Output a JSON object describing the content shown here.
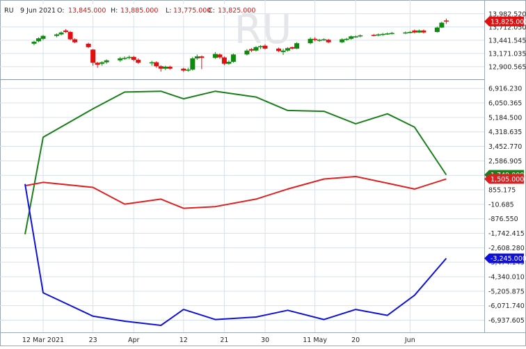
{
  "watermark": "RU",
  "header": {
    "symbol": "RU",
    "date": "9 Jun 2021",
    "open_label": "O:",
    "open_value": "13,845.000",
    "high_label": "H:",
    "high_value": "13,885.000",
    "low_label": "L:",
    "low_value": "13,775.000",
    "close_label": "C:",
    "close_value": "13,825.000"
  },
  "colors": {
    "up": "#0e8a0e",
    "down": "#e01010",
    "green_line": "#1a7f1a",
    "red_line": "#e02020",
    "blue_line": "#1010dd",
    "grid": "#d6e0ea",
    "axis_text": "#222222",
    "header_value": "#e01010"
  },
  "x_axis": {
    "ticks": [
      {
        "label": "12 Mar 2021",
        "date": "2021-03-12"
      },
      {
        "label": "23",
        "date": "2021-03-23"
      },
      {
        "label": "Apr",
        "date": "2021-04-01"
      },
      {
        "label": "12",
        "date": "2021-04-12"
      },
      {
        "label": "21",
        "date": "2021-04-21"
      },
      {
        "label": "30",
        "date": "2021-04-30"
      },
      {
        "label": "11 May",
        "date": "2021-05-11"
      },
      {
        "label": "20",
        "date": "2021-05-20"
      },
      {
        "label": "Jun",
        "date": "2021-06-01"
      }
    ]
  },
  "price_panel": {
    "y_ticks": [
      "13,982.520",
      "13,712.050",
      "13,441.545",
      "13,171.035",
      "12,900.565"
    ],
    "last_price_label": "13,825.000"
  },
  "indicator_panel": {
    "y_ticks": [
      "6,916.230",
      "6,050.365",
      "5,184.500",
      "4,318.635",
      "3,452.770",
      "2,586.905",
      "1,721.040",
      "855.175",
      "-10.685",
      "-876.550",
      "-1,742.415",
      "-2,608.280",
      "-3,474.145",
      "-4,340.010",
      "-5,205.875",
      "-6,071.740",
      "-6,937.605"
    ],
    "badges": [
      {
        "label": "1,749.000",
        "series": "green"
      },
      {
        "label": "1,505.000",
        "series": "red"
      },
      {
        "label": "-3,245.000",
        "series": "blue"
      }
    ]
  },
  "chart_data": [
    {
      "type": "candlestick",
      "title": "RU",
      "ylim": [
        12700,
        14150
      ],
      "candles": [
        {
          "date": "2021-03-10",
          "open": 13370,
          "high": 13430,
          "low": 13340,
          "close": 13410
        },
        {
          "date": "2021-03-11",
          "open": 13420,
          "high": 13500,
          "low": 13400,
          "close": 13480
        },
        {
          "date": "2021-03-12",
          "open": 13470,
          "high": 13550,
          "low": 13440,
          "close": 13530
        },
        {
          "date": "2021-03-15",
          "open": 13530,
          "high": 13580,
          "low": 13500,
          "close": 13560
        },
        {
          "date": "2021-03-16",
          "open": 13560,
          "high": 13620,
          "low": 13540,
          "close": 13600
        },
        {
          "date": "2021-03-17",
          "open": 13640,
          "high": 13670,
          "low": 13590,
          "close": 13610
        },
        {
          "date": "2021-03-18",
          "open": 13610,
          "high": 13630,
          "low": 13440,
          "close": 13460
        },
        {
          "date": "2021-03-19",
          "open": 13460,
          "high": 13480,
          "low": 13380,
          "close": 13400
        },
        {
          "date": "2021-03-22",
          "open": 13370,
          "high": 13390,
          "low": 13280,
          "close": 13300
        },
        {
          "date": "2021-03-23",
          "open": 13250,
          "high": 13260,
          "low": 12920,
          "close": 12980
        },
        {
          "date": "2021-03-24",
          "open": 12980,
          "high": 13000,
          "low": 12880,
          "close": 12940
        },
        {
          "date": "2021-03-25",
          "open": 12960,
          "high": 13010,
          "low": 12920,
          "close": 12990
        },
        {
          "date": "2021-03-26",
          "open": 12990,
          "high": 13050,
          "low": 12960,
          "close": 13030
        },
        {
          "date": "2021-03-29",
          "open": 13030,
          "high": 13100,
          "low": 13000,
          "close": 13070
        },
        {
          "date": "2021-03-30",
          "open": 13070,
          "high": 13110,
          "low": 13040,
          "close": 13080
        },
        {
          "date": "2021-03-31",
          "open": 13080,
          "high": 13130,
          "low": 13050,
          "close": 13100
        },
        {
          "date": "2021-04-01",
          "open": 13100,
          "high": 13120,
          "low": 13010,
          "close": 13040
        },
        {
          "date": "2021-04-02",
          "open": 13040,
          "high": 13070,
          "low": 12960,
          "close": 12980
        },
        {
          "date": "2021-04-05",
          "open": 12980,
          "high": 13020,
          "low": 12920,
          "close": 12990
        },
        {
          "date": "2021-04-06",
          "open": 12990,
          "high": 13010,
          "low": 12880,
          "close": 12910
        },
        {
          "date": "2021-04-07",
          "open": 12910,
          "high": 12930,
          "low": 12800,
          "close": 12860
        },
        {
          "date": "2021-04-08",
          "open": 12860,
          "high": 12920,
          "low": 12830,
          "close": 12900
        },
        {
          "date": "2021-04-09",
          "open": 12900,
          "high": 12920,
          "low": 12840,
          "close": 12860
        },
        {
          "date": "2021-04-12",
          "open": 12860,
          "high": 12880,
          "low": 12790,
          "close": 12820
        },
        {
          "date": "2021-04-13",
          "open": 12820,
          "high": 12880,
          "low": 12800,
          "close": 12840
        },
        {
          "date": "2021-04-14",
          "open": 12840,
          "high": 13100,
          "low": 12820,
          "close": 13070
        },
        {
          "date": "2021-04-15",
          "open": 13070,
          "high": 13150,
          "low": 13040,
          "close": 13110
        },
        {
          "date": "2021-04-16",
          "open": 13110,
          "high": 13130,
          "low": 12850,
          "close": 13080
        },
        {
          "date": "2021-04-19",
          "open": 13080,
          "high": 13200,
          "low": 13060,
          "close": 13160
        },
        {
          "date": "2021-04-20",
          "open": 13150,
          "high": 13170,
          "low": 13060,
          "close": 13090
        },
        {
          "date": "2021-04-21",
          "open": 13090,
          "high": 13110,
          "low": 12930,
          "close": 12960
        },
        {
          "date": "2021-04-22",
          "open": 12960,
          "high": 13030,
          "low": 12940,
          "close": 13000
        },
        {
          "date": "2021-04-23",
          "open": 13000,
          "high": 13170,
          "low": 12980,
          "close": 13150
        },
        {
          "date": "2021-04-26",
          "open": 13150,
          "high": 13260,
          "low": 13130,
          "close": 13230
        },
        {
          "date": "2021-04-27",
          "open": 13260,
          "high": 13280,
          "low": 13200,
          "close": 13230
        },
        {
          "date": "2021-04-28",
          "open": 13230,
          "high": 13320,
          "low": 13210,
          "close": 13300
        },
        {
          "date": "2021-04-29",
          "open": 13300,
          "high": 13340,
          "low": 13260,
          "close": 13320
        },
        {
          "date": "2021-04-30",
          "open": 13330,
          "high": 13360,
          "low": 13250,
          "close": 13270
        },
        {
          "date": "2021-05-03",
          "open": 13270,
          "high": 13290,
          "low": 13200,
          "close": 13220
        },
        {
          "date": "2021-05-04",
          "open": 13200,
          "high": 13270,
          "low": 13140,
          "close": 13230
        },
        {
          "date": "2021-05-05",
          "open": 13230,
          "high": 13300,
          "low": 13210,
          "close": 13280
        },
        {
          "date": "2021-05-06",
          "open": 13300,
          "high": 13310,
          "low": 13250,
          "close": 13270
        },
        {
          "date": "2021-05-07",
          "open": 13270,
          "high": 13400,
          "low": 13260,
          "close": 13380
        },
        {
          "date": "2021-05-10",
          "open": 13380,
          "high": 13500,
          "low": 13360,
          "close": 13470
        },
        {
          "date": "2021-05-11",
          "open": 13470,
          "high": 13500,
          "low": 13420,
          "close": 13450
        },
        {
          "date": "2021-05-12",
          "open": 13440,
          "high": 13470,
          "low": 13410,
          "close": 13450
        },
        {
          "date": "2021-05-13",
          "open": 13450,
          "high": 13480,
          "low": 13430,
          "close": 13460
        },
        {
          "date": "2021-05-14",
          "open": 13450,
          "high": 13470,
          "low": 13380,
          "close": 13400
        },
        {
          "date": "2021-05-17",
          "open": 13400,
          "high": 13480,
          "low": 13380,
          "close": 13460
        },
        {
          "date": "2021-05-18",
          "open": 13460,
          "high": 13490,
          "low": 13430,
          "close": 13470
        },
        {
          "date": "2021-05-19",
          "open": 13470,
          "high": 13540,
          "low": 13450,
          "close": 13520
        },
        {
          "date": "2021-05-20",
          "open": 13510,
          "high": 13540,
          "low": 13490,
          "close": 13520
        },
        {
          "date": "2021-05-21",
          "open": 13520,
          "high": 13560,
          "low": 13500,
          "close": 13540
        },
        {
          "date": "2021-05-24",
          "open": 13550,
          "high": 13570,
          "low": 13520,
          "close": 13540
        },
        {
          "date": "2021-05-25",
          "open": 13540,
          "high": 13580,
          "low": 13520,
          "close": 13560
        },
        {
          "date": "2021-05-26",
          "open": 13560,
          "high": 13590,
          "low": 13530,
          "close": 13570
        },
        {
          "date": "2021-05-27",
          "open": 13570,
          "high": 13600,
          "low": 13550,
          "close": 13580
        },
        {
          "date": "2021-05-28",
          "open": 13580,
          "high": 13610,
          "low": 13560,
          "close": 13590
        },
        {
          "date": "2021-05-31",
          "open": 13590,
          "high": 13620,
          "low": 13570,
          "close": 13600
        },
        {
          "date": "2021-06-01",
          "open": 13600,
          "high": 13630,
          "low": 13580,
          "close": 13610
        },
        {
          "date": "2021-06-02",
          "open": 13640,
          "high": 13660,
          "low": 13580,
          "close": 13600
        },
        {
          "date": "2021-06-03",
          "open": 13600,
          "high": 13660,
          "low": 13590,
          "close": 13640
        },
        {
          "date": "2021-06-04",
          "open": 13640,
          "high": 13660,
          "low": 13580,
          "close": 13600
        },
        {
          "date": "2021-06-07",
          "open": 13610,
          "high": 13720,
          "low": 13600,
          "close": 13700
        },
        {
          "date": "2021-06-08",
          "open": 13700,
          "high": 13820,
          "low": 13690,
          "close": 13800
        },
        {
          "date": "2021-06-09",
          "open": 13845,
          "high": 13885,
          "low": 13775,
          "close": 13825
        }
      ]
    },
    {
      "type": "line",
      "ylim": [
        -7500,
        7300
      ],
      "series": [
        {
          "color": "green",
          "points": [
            {
              "x": "2021-03-08",
              "y": -1800
            },
            {
              "x": "2021-03-12",
              "y": 4000
            },
            {
              "x": "2021-03-23",
              "y": 5700
            },
            {
              "x": "2021-03-30",
              "y": 6700
            },
            {
              "x": "2021-04-07",
              "y": 6750
            },
            {
              "x": "2021-04-12",
              "y": 6300
            },
            {
              "x": "2021-04-19",
              "y": 6750
            },
            {
              "x": "2021-04-28",
              "y": 6400
            },
            {
              "x": "2021-05-05",
              "y": 5600
            },
            {
              "x": "2021-05-13",
              "y": 5550
            },
            {
              "x": "2021-05-20",
              "y": 4800
            },
            {
              "x": "2021-05-27",
              "y": 5400
            },
            {
              "x": "2021-06-02",
              "y": 4600
            },
            {
              "x": "2021-06-09",
              "y": 1749
            }
          ]
        },
        {
          "color": "red",
          "points": [
            {
              "x": "2021-03-08",
              "y": 1100
            },
            {
              "x": "2021-03-12",
              "y": 1300
            },
            {
              "x": "2021-03-23",
              "y": 1000
            },
            {
              "x": "2021-03-30",
              "y": 0
            },
            {
              "x": "2021-04-07",
              "y": 300
            },
            {
              "x": "2021-04-12",
              "y": -250
            },
            {
              "x": "2021-04-19",
              "y": -150
            },
            {
              "x": "2021-04-28",
              "y": 300
            },
            {
              "x": "2021-05-05",
              "y": 900
            },
            {
              "x": "2021-05-13",
              "y": 1500
            },
            {
              "x": "2021-05-20",
              "y": 1650
            },
            {
              "x": "2021-05-27",
              "y": 1250
            },
            {
              "x": "2021-06-02",
              "y": 900
            },
            {
              "x": "2021-06-09",
              "y": 1505
            }
          ]
        },
        {
          "color": "blue",
          "points": [
            {
              "x": "2021-03-08",
              "y": 1200
            },
            {
              "x": "2021-03-12",
              "y": -5300
            },
            {
              "x": "2021-03-23",
              "y": -6700
            },
            {
              "x": "2021-03-30",
              "y": -7000
            },
            {
              "x": "2021-04-07",
              "y": -7250
            },
            {
              "x": "2021-04-12",
              "y": -6300
            },
            {
              "x": "2021-04-19",
              "y": -6900
            },
            {
              "x": "2021-04-28",
              "y": -6750
            },
            {
              "x": "2021-05-05",
              "y": -6350
            },
            {
              "x": "2021-05-13",
              "y": -6900
            },
            {
              "x": "2021-05-20",
              "y": -6300
            },
            {
              "x": "2021-05-27",
              "y": -6650
            },
            {
              "x": "2021-06-02",
              "y": -5450
            },
            {
              "x": "2021-06-09",
              "y": -3245
            }
          ]
        }
      ]
    }
  ]
}
